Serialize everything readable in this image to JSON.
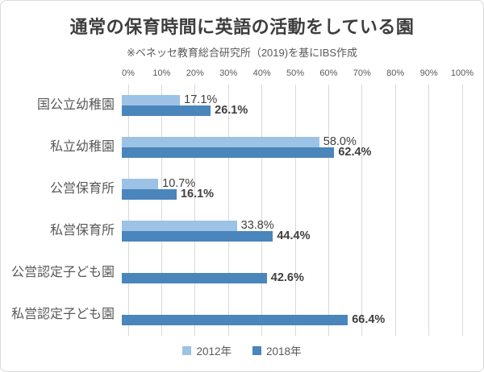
{
  "chart_data": {
    "type": "bar",
    "orientation": "horizontal",
    "title": "通常の保育時間に英語の活動をしている園",
    "source_note": "※ベネッセ教育総合研究所（2019)を基にIBS作成",
    "categories": [
      "国公立幼稚園",
      "私立幼稚園",
      "公営保育所",
      "私営保育所",
      "公営認定子ども園",
      "私営認定子ども園"
    ],
    "series": [
      {
        "name": "2012年",
        "color": "#9cc2e5",
        "values": [
          17.1,
          58.0,
          10.7,
          33.8,
          null,
          null
        ]
      },
      {
        "name": "2018年",
        "color": "#4a85bb",
        "values": [
          26.1,
          62.4,
          16.1,
          44.4,
          42.6,
          66.4
        ]
      }
    ],
    "x_ticks": [
      "0%",
      "10%",
      "20%",
      "30%",
      "40%",
      "50%",
      "60%",
      "70%",
      "80%",
      "90%",
      "100%"
    ],
    "xlim": [
      0,
      100
    ],
    "grid": true,
    "legend_position": "bottom",
    "colors": {
      "gridline": "#d9d9d9",
      "axis_text": "#595959",
      "category_text": "#595959",
      "value_text": "#3f3f3f",
      "title_text": "#3d3d3d"
    }
  }
}
